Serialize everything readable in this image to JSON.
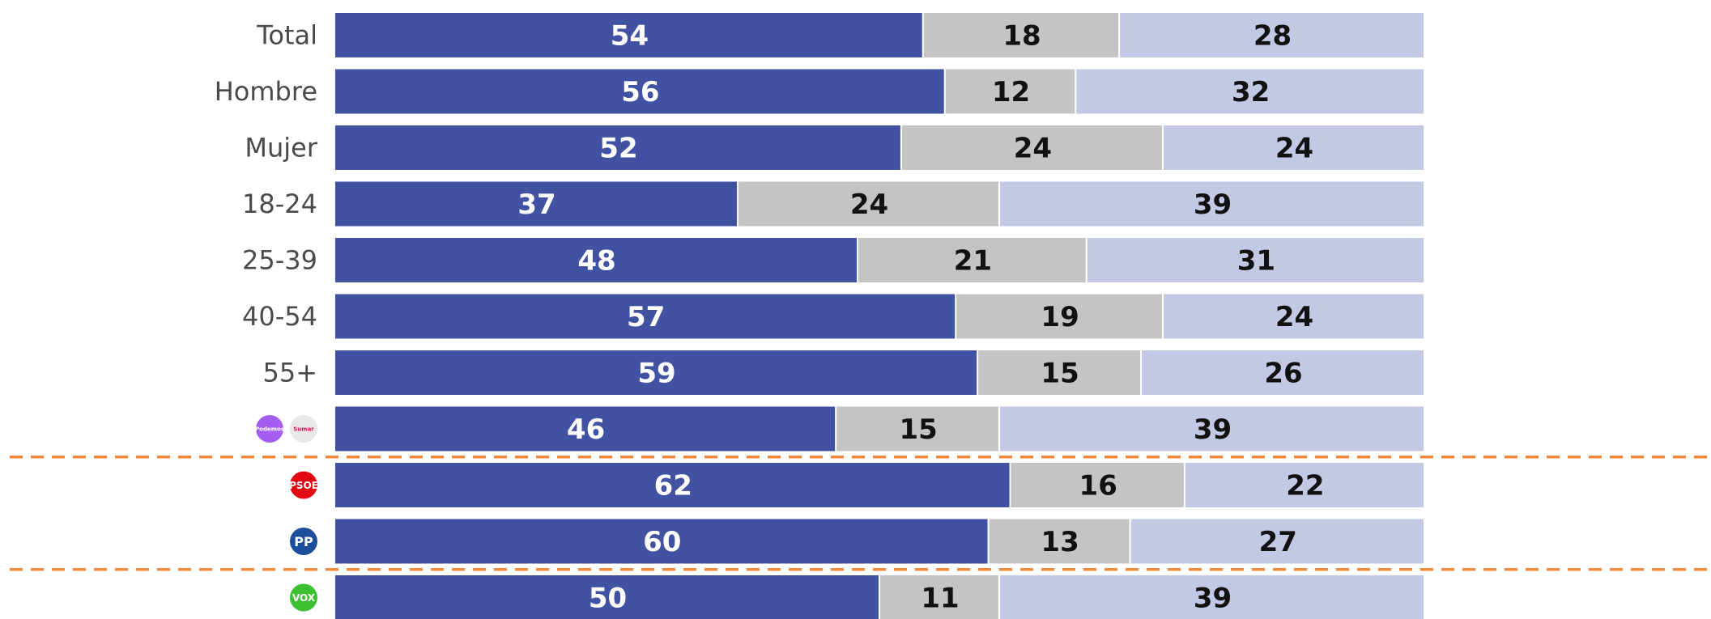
{
  "chart_data": {
    "type": "bar",
    "stacked": true,
    "orientation": "horizontal",
    "normalized_total": 100,
    "categories": [
      "Total",
      "Hombre",
      "Mujer",
      "18-24",
      "25-39",
      "40-54",
      "55+",
      "Podemos",
      "PSOE",
      "PP",
      "VOX"
    ],
    "category_display": [
      {
        "kind": "text",
        "label": "Total"
      },
      {
        "kind": "text",
        "label": "Hombre"
      },
      {
        "kind": "text",
        "label": "Mujer"
      },
      {
        "kind": "text",
        "label": "18-24"
      },
      {
        "kind": "text",
        "label": "25-39"
      },
      {
        "kind": "text",
        "label": "40-54"
      },
      {
        "kind": "text",
        "label": "55+"
      },
      {
        "kind": "logos",
        "logos": [
          {
            "icon": "podemos-logo-icon",
            "text": "Podemos",
            "color": "#a45df1",
            "text_color": "#ffffff"
          },
          {
            "icon": "sumar-logo-icon",
            "text": "Sumar",
            "color": "#e8e8e8",
            "text_color": "#e0115f"
          }
        ]
      },
      {
        "kind": "logos",
        "logos": [
          {
            "icon": "psoe-logo-icon",
            "text": "PSOE",
            "color": "#e30613",
            "text_color": "#ffffff"
          }
        ]
      },
      {
        "kind": "logos",
        "logos": [
          {
            "icon": "pp-logo-icon",
            "text": "PP",
            "color": "#1d4e9b",
            "text_color": "#ffffff"
          }
        ]
      },
      {
        "kind": "logos",
        "logos": [
          {
            "icon": "vox-logo-icon",
            "text": "VOX",
            "color": "#3cbf31",
            "text_color": "#ffffff"
          }
        ]
      }
    ],
    "series": [
      {
        "color": "#4252a3",
        "label_color": "#ffffff",
        "values": [
          54,
          56,
          52,
          37,
          48,
          57,
          59,
          46,
          62,
          60,
          50
        ]
      },
      {
        "color": "#c4c4c4",
        "label_color": "#111111",
        "values": [
          18,
          12,
          24,
          24,
          21,
          19,
          15,
          15,
          16,
          13,
          11
        ]
      },
      {
        "color": "#c3c8e4",
        "label_color": "#111111",
        "values": [
          28,
          32,
          24,
          39,
          31,
          24,
          26,
          39,
          22,
          27,
          39
        ]
      }
    ],
    "separator_lines": {
      "after_categories": [
        "Podemos",
        "PP"
      ],
      "style": "dashed",
      "color": "#f08a3c"
    },
    "legend": "none",
    "grid": false
  }
}
